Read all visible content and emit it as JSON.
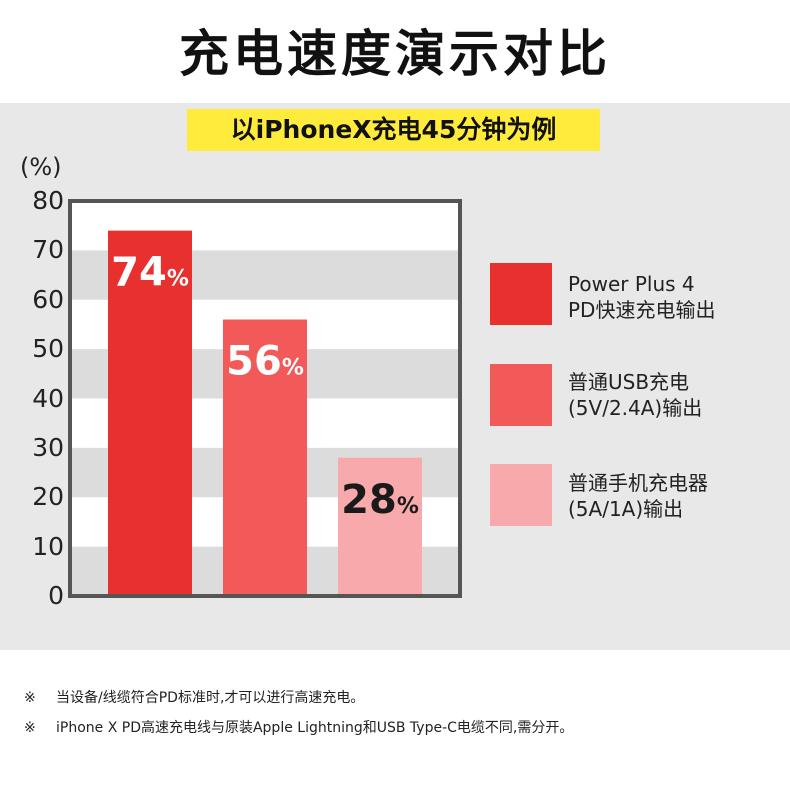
{
  "title": "充电速度演示对比",
  "subtitle": "以iPhoneX充电45分钟为例",
  "colors": {
    "panel_bg": "#e8e8e8",
    "highlight": "#ffeb3b",
    "series1": "#e8302e",
    "series2": "#f25a5a",
    "series3": "#f7a9ab"
  },
  "chart_data": {
    "type": "bar",
    "ylabel": "(%)",
    "ylim": [
      0,
      80
    ],
    "yticks": [
      "80",
      "70",
      "60",
      "50",
      "40",
      "30",
      "20",
      "10",
      "0"
    ],
    "categories": [
      "Power Plus 4 PD快速充电输出",
      "普通USB充电 (5V/2.4A)输出",
      "普通手机充电器 (5A/1A)输出"
    ],
    "values": [
      74,
      56,
      28
    ],
    "data_labels": [
      "74",
      "56",
      "28"
    ],
    "label_unit": "%",
    "grid": "alternating horizontal bands",
    "legend_position": "right"
  },
  "legend": [
    {
      "label": "Power Plus 4\nPD快速充电输出"
    },
    {
      "label": "普通USB充电\n(5V/2.4A)输出"
    },
    {
      "label": "普通手机充电器\n(5A/1A)输出"
    }
  ],
  "notes": [
    {
      "mark": "※",
      "text": "当设备/线缆符合PD标准时,才可以进行高速充电。"
    },
    {
      "mark": "※",
      "text": "iPhone X PD高速充电线与原装Apple Lightning和USB Type-C电缆不同,需分开。"
    }
  ]
}
